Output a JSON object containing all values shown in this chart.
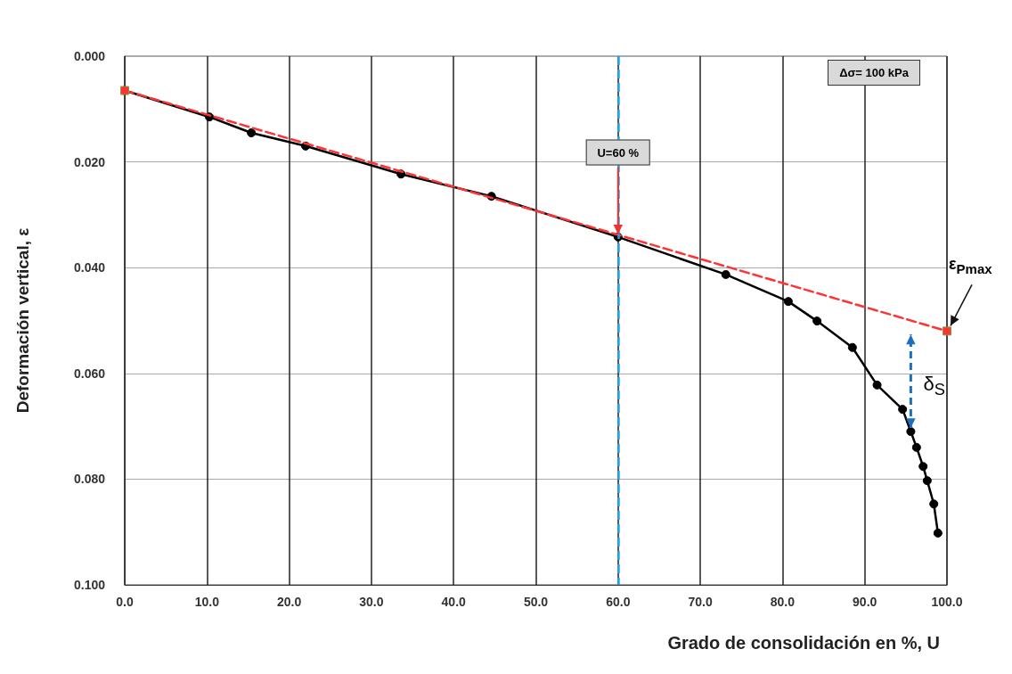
{
  "chart_data": {
    "type": "line",
    "xlabel": "Grado de consolidación en %, U",
    "ylabel": "Deformación vertical, ε",
    "xlim": [
      0,
      100
    ],
    "xticks": [
      {
        "value": 0,
        "label": "0.0"
      },
      {
        "value": 10,
        "label": "10.0"
      },
      {
        "value": 20,
        "label": "20.0"
      },
      {
        "value": 30,
        "label": "30.0"
      },
      {
        "value": 40,
        "label": "40.0"
      },
      {
        "value": 50,
        "label": "50.0"
      },
      {
        "value": 60,
        "label": "60.0"
      },
      {
        "value": 70,
        "label": "70.0"
      },
      {
        "value": 80,
        "label": "80.0"
      },
      {
        "value": 90,
        "label": "90.0"
      },
      {
        "value": 100,
        "label": "100.0"
      }
    ],
    "ylim": [
      0.1,
      0
    ],
    "yticks": [
      {
        "value": 0,
        "label": "0.000"
      },
      {
        "value": 0.02,
        "label": "0.020"
      },
      {
        "value": 0.04,
        "label": "0.040"
      },
      {
        "value": 0.06,
        "label": "0.060"
      },
      {
        "value": 0.08,
        "label": "0.080"
      },
      {
        "value": 0.1,
        "label": "0.100"
      }
    ],
    "grid": true,
    "series": [
      {
        "color": "#000000",
        "marker": "circle",
        "line_style": "solid",
        "x": [
          0,
          10.3,
          15.4,
          22,
          33.6,
          44.6,
          60,
          73.1,
          80.7,
          84.2,
          88.5,
          91.5,
          94.6,
          95.6,
          96.3,
          97.1,
          97.6,
          98.4,
          98.9
        ],
        "values": [
          0.0065,
          0.0115,
          0.0145,
          0.017,
          0.0223,
          0.0265,
          0.0342,
          0.0413,
          0.0464,
          0.0501,
          0.0551,
          0.0622,
          0.0668,
          0.071,
          0.074,
          0.0776,
          0.0803,
          0.0847,
          0.0902
        ]
      },
      {
        "color": "#ff3333",
        "marker": "square",
        "line_style": "dashed",
        "x": [
          0,
          100
        ],
        "values": [
          0.0065,
          0.052
        ]
      }
    ],
    "ref_lines": [
      {
        "axis": "x",
        "value": 60,
        "label": null,
        "color": "#1fa8f0",
        "line_style": "dashed"
      }
    ],
    "annotations": [
      {
        "text": "U=60 %",
        "x": 60,
        "y": 0.0342
      },
      {
        "text": "ε$_{Pmax}$",
        "x": 100,
        "y": 0.052
      },
      "Δσ= 100 kPa",
      "δ$_{S}$"
    ]
  }
}
